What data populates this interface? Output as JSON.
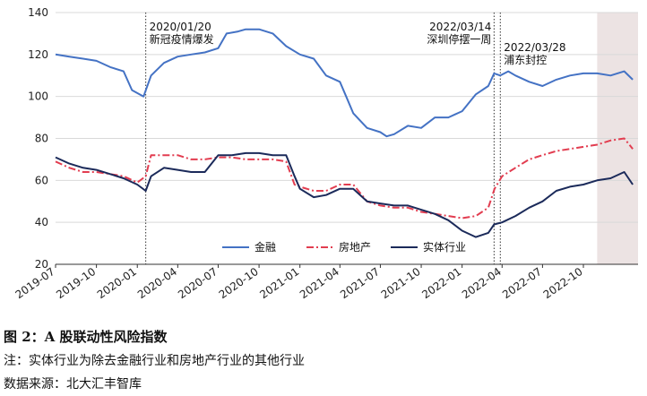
{
  "figure": {
    "title": "图 2：A 股联动性风险指数",
    "note": "注：实体行业为除去金融行业和房地产行业的其他行业",
    "source": "数据来源：北大汇丰智库"
  },
  "chart_data": {
    "type": "line",
    "title": "",
    "xlabel": "",
    "ylabel": "",
    "ylim": [
      20,
      140
    ],
    "yticks": [
      20,
      40,
      60,
      80,
      100,
      120,
      140
    ],
    "xlim": [
      "2019-07-01",
      "2023-02-01"
    ],
    "xticks": [
      "2019-07",
      "2019-10",
      "2020-01",
      "2020-04",
      "2020-07",
      "2020-10",
      "2021-01",
      "2021-04",
      "2021-07",
      "2021-10",
      "2022-01",
      "2022-04",
      "2022-07",
      "2022-10"
    ],
    "grid": "horizontal",
    "legend_position": "bottom-center",
    "shaded_region": {
      "from": "2022-11-01",
      "to": "2023-02-01",
      "color": "#ece3e3"
    },
    "annotations": [
      {
        "date": "2020-01-20",
        "lines": [
          "2020/01/20",
          "新冠疫情爆发"
        ]
      },
      {
        "date": "2022-03-14",
        "lines": [
          "2022/03/14",
          "深圳停摆一周"
        ]
      },
      {
        "date": "2022-03-28",
        "lines": [
          "2022/03/28",
          "浦东封控"
        ]
      }
    ],
    "series": [
      {
        "name": "金融",
        "color": "#4472c4",
        "style": "solid",
        "points": [
          [
            "2019-07-01",
            120
          ],
          [
            "2019-08-01",
            119
          ],
          [
            "2019-09-01",
            118
          ],
          [
            "2019-10-01",
            117
          ],
          [
            "2019-11-01",
            114
          ],
          [
            "2019-12-01",
            112
          ],
          [
            "2019-12-20",
            103
          ],
          [
            "2020-01-15",
            100
          ],
          [
            "2020-02-01",
            110
          ],
          [
            "2020-03-01",
            116
          ],
          [
            "2020-04-01",
            119
          ],
          [
            "2020-05-01",
            120
          ],
          [
            "2020-06-01",
            121
          ],
          [
            "2020-07-01",
            123
          ],
          [
            "2020-07-20",
            130
          ],
          [
            "2020-08-15",
            131
          ],
          [
            "2020-09-01",
            132
          ],
          [
            "2020-10-01",
            132
          ],
          [
            "2020-11-01",
            130
          ],
          [
            "2020-12-01",
            124
          ],
          [
            "2021-01-01",
            120
          ],
          [
            "2021-02-01",
            118
          ],
          [
            "2021-03-01",
            110
          ],
          [
            "2021-04-01",
            107
          ],
          [
            "2021-04-15",
            100
          ],
          [
            "2021-05-01",
            92
          ],
          [
            "2021-06-01",
            85
          ],
          [
            "2021-07-01",
            83
          ],
          [
            "2021-07-15",
            81
          ],
          [
            "2021-08-01",
            82
          ],
          [
            "2021-09-01",
            86
          ],
          [
            "2021-10-01",
            85
          ],
          [
            "2021-11-01",
            90
          ],
          [
            "2021-12-01",
            90
          ],
          [
            "2022-01-01",
            93
          ],
          [
            "2022-02-01",
            101
          ],
          [
            "2022-03-01",
            105
          ],
          [
            "2022-03-14",
            111
          ],
          [
            "2022-03-28",
            110
          ],
          [
            "2022-04-15",
            112
          ],
          [
            "2022-05-01",
            110
          ],
          [
            "2022-06-01",
            107
          ],
          [
            "2022-07-01",
            105
          ],
          [
            "2022-08-01",
            108
          ],
          [
            "2022-09-01",
            110
          ],
          [
            "2022-10-01",
            111
          ],
          [
            "2022-11-01",
            111
          ],
          [
            "2022-12-01",
            110
          ],
          [
            "2023-01-01",
            112
          ],
          [
            "2023-01-20",
            108
          ]
        ]
      },
      {
        "name": "房地产",
        "color": "#e23d50",
        "style": "dashdot",
        "points": [
          [
            "2019-07-01",
            69
          ],
          [
            "2019-08-01",
            66
          ],
          [
            "2019-09-01",
            64
          ],
          [
            "2019-10-01",
            64
          ],
          [
            "2019-11-01",
            63
          ],
          [
            "2019-12-01",
            62
          ],
          [
            "2020-01-01",
            59
          ],
          [
            "2020-01-20",
            62
          ],
          [
            "2020-02-01",
            72
          ],
          [
            "2020-03-01",
            72
          ],
          [
            "2020-04-01",
            72
          ],
          [
            "2020-05-01",
            70
          ],
          [
            "2020-06-01",
            70
          ],
          [
            "2020-07-01",
            71
          ],
          [
            "2020-08-01",
            71
          ],
          [
            "2020-09-01",
            70
          ],
          [
            "2020-10-01",
            70
          ],
          [
            "2020-11-01",
            70
          ],
          [
            "2020-12-01",
            69
          ],
          [
            "2020-12-20",
            58
          ],
          [
            "2021-01-01",
            57
          ],
          [
            "2021-02-01",
            55
          ],
          [
            "2021-03-01",
            55
          ],
          [
            "2021-04-01",
            58
          ],
          [
            "2021-05-01",
            58
          ],
          [
            "2021-06-01",
            50
          ],
          [
            "2021-07-01",
            48
          ],
          [
            "2021-08-01",
            47
          ],
          [
            "2021-09-01",
            47
          ],
          [
            "2021-10-01",
            45
          ],
          [
            "2021-11-01",
            44
          ],
          [
            "2021-12-01",
            43
          ],
          [
            "2022-01-01",
            42
          ],
          [
            "2022-02-01",
            43
          ],
          [
            "2022-03-01",
            47
          ],
          [
            "2022-03-15",
            56
          ],
          [
            "2022-04-01",
            62
          ],
          [
            "2022-05-01",
            66
          ],
          [
            "2022-06-01",
            70
          ],
          [
            "2022-07-01",
            72
          ],
          [
            "2022-08-01",
            74
          ],
          [
            "2022-09-01",
            75
          ],
          [
            "2022-10-01",
            76
          ],
          [
            "2022-11-01",
            77
          ],
          [
            "2022-12-01",
            79
          ],
          [
            "2023-01-01",
            80
          ],
          [
            "2023-01-20",
            75
          ]
        ]
      },
      {
        "name": "实体行业",
        "color": "#1b2a5a",
        "style": "solid",
        "points": [
          [
            "2019-07-01",
            71
          ],
          [
            "2019-08-01",
            68
          ],
          [
            "2019-09-01",
            66
          ],
          [
            "2019-10-01",
            65
          ],
          [
            "2019-11-01",
            63
          ],
          [
            "2019-12-01",
            61
          ],
          [
            "2020-01-01",
            58
          ],
          [
            "2020-01-20",
            55
          ],
          [
            "2020-02-01",
            62
          ],
          [
            "2020-03-01",
            66
          ],
          [
            "2020-04-01",
            65
          ],
          [
            "2020-05-01",
            64
          ],
          [
            "2020-06-01",
            64
          ],
          [
            "2020-07-01",
            72
          ],
          [
            "2020-08-01",
            72
          ],
          [
            "2020-09-01",
            73
          ],
          [
            "2020-10-01",
            73
          ],
          [
            "2020-11-01",
            72
          ],
          [
            "2020-12-01",
            72
          ],
          [
            "2020-12-20",
            62
          ],
          [
            "2021-01-01",
            56
          ],
          [
            "2021-02-01",
            52
          ],
          [
            "2021-03-01",
            53
          ],
          [
            "2021-04-01",
            56
          ],
          [
            "2021-05-01",
            56
          ],
          [
            "2021-06-01",
            50
          ],
          [
            "2021-07-01",
            49
          ],
          [
            "2021-08-01",
            48
          ],
          [
            "2021-09-01",
            48
          ],
          [
            "2021-10-01",
            46
          ],
          [
            "2021-11-01",
            44
          ],
          [
            "2021-12-01",
            41
          ],
          [
            "2022-01-01",
            36
          ],
          [
            "2022-02-01",
            33
          ],
          [
            "2022-03-01",
            35
          ],
          [
            "2022-03-14",
            39
          ],
          [
            "2022-04-01",
            40
          ],
          [
            "2022-05-01",
            43
          ],
          [
            "2022-06-01",
            47
          ],
          [
            "2022-07-01",
            50
          ],
          [
            "2022-08-01",
            55
          ],
          [
            "2022-09-01",
            57
          ],
          [
            "2022-10-01",
            58
          ],
          [
            "2022-11-01",
            60
          ],
          [
            "2022-12-01",
            61
          ],
          [
            "2023-01-01",
            64
          ],
          [
            "2023-01-20",
            58
          ]
        ]
      }
    ]
  }
}
